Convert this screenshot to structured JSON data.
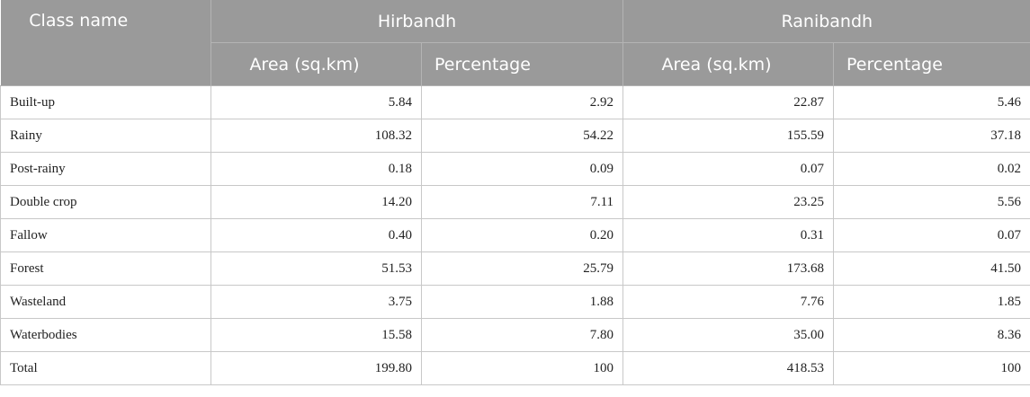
{
  "table": {
    "header": {
      "class_name": "Class name",
      "groups": [
        "Hirbandh",
        "Ranibandh"
      ],
      "subcolumns": [
        "Area (sq.km)",
        "Percentage",
        "Area (sq.km)",
        "Percentage"
      ]
    },
    "rows": [
      {
        "name": "Built-up",
        "values": [
          "5.84",
          "2.92",
          "22.87",
          "5.46"
        ]
      },
      {
        "name": "Rainy",
        "values": [
          "108.32",
          "54.22",
          "155.59",
          "37.18"
        ]
      },
      {
        "name": "Post-rainy",
        "values": [
          "0.18",
          "0.09",
          "0.07",
          "0.02"
        ]
      },
      {
        "name": "Double crop",
        "values": [
          "14.20",
          "7.11",
          "23.25",
          "5.56"
        ]
      },
      {
        "name": "Fallow",
        "values": [
          "0.40",
          "0.20",
          "0.31",
          "0.07"
        ]
      },
      {
        "name": "Forest",
        "values": [
          "51.53",
          "25.79",
          "173.68",
          "41.50"
        ]
      },
      {
        "name": "Wasteland",
        "values": [
          "3.75",
          "1.88",
          "7.76",
          "1.85"
        ]
      },
      {
        "name": "Waterbodies",
        "values": [
          "15.58",
          "7.80",
          "35.00",
          "8.36"
        ]
      },
      {
        "name": "Total",
        "values": [
          "199.80",
          "100",
          "418.53",
          "100"
        ]
      }
    ]
  }
}
